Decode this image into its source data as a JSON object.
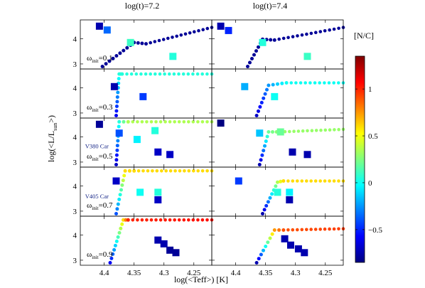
{
  "chart_data": {
    "type": "scatter",
    "col_titles": [
      "log(t)=7.2",
      "log(t)=7.4"
    ],
    "xlabel": "log(<Teff>) [K]",
    "ylabel_main": "log(<L/L",
    "ylabel_sub": "sun",
    "ylabel_tail": ">)",
    "xlim": [
      4.44,
      4.22
    ],
    "ylim": [
      2.8,
      4.75
    ],
    "xticks": [
      4.4,
      4.35,
      4.3,
      4.25
    ],
    "xtick_labels": [
      "4.4",
      "4.35",
      "4.3",
      "4.25"
    ],
    "yticks": [
      3,
      4
    ],
    "ytick_labels": [
      "3",
      "4"
    ],
    "omega_label_main": "ω",
    "omega_label_sub": "init",
    "omega_rows": [
      "=0.1",
      "=0.3",
      "=0.5",
      "=0.7",
      "=0.9"
    ],
    "star_labels": [
      {
        "row": 2,
        "col": 0,
        "text": "V380 Car",
        "x": 4.432,
        "y": 3.55
      },
      {
        "row": 3,
        "col": 0,
        "text": "V405 Car",
        "x": 4.432,
        "y": 3.5
      }
    ],
    "colorbar": {
      "title": "[N/C]",
      "range": [
        -0.85,
        1.35
      ],
      "ticks": [
        1,
        0.5,
        0,
        -0.5
      ],
      "tick_labels": [
        "1",
        "0.5",
        "0",
        "−0.5"
      ]
    },
    "panels": [
      {
        "row": 0,
        "col": 0,
        "track": [
          [
            4.403,
            2.9
          ],
          [
            4.35,
            3.85
          ],
          [
            4.33,
            3.8
          ],
          [
            4.22,
            4.45
          ]
        ],
        "track_v": [
          -0.8,
          -0.8,
          -0.8,
          -0.8
        ],
        "squares": [
          [
            4.408,
            4.5,
            -0.75
          ],
          [
            4.395,
            4.35,
            -0.35
          ],
          [
            4.356,
            3.85,
            0.1
          ],
          [
            4.285,
            3.3,
            0.05
          ]
        ]
      },
      {
        "row": 0,
        "col": 1,
        "track": [
          [
            4.38,
            2.9
          ],
          [
            4.355,
            3.98
          ],
          [
            4.335,
            3.95
          ],
          [
            4.22,
            4.45
          ]
        ],
        "track_v": [
          -0.8,
          -0.8,
          -0.8,
          -0.8
        ],
        "squares": [
          [
            4.425,
            4.5,
            -0.75
          ],
          [
            4.412,
            4.33,
            -0.5
          ],
          [
            4.355,
            3.85,
            0.05
          ],
          [
            4.28,
            3.3,
            0.1
          ]
        ]
      },
      {
        "row": 1,
        "col": 0,
        "track": [
          [
            4.38,
            2.9
          ],
          [
            4.375,
            4.55
          ],
          [
            4.37,
            4.55
          ],
          [
            4.22,
            4.55
          ]
        ],
        "track_v": [
          -0.6,
          0.05,
          0.05,
          0.05
        ],
        "squares": [
          [
            4.383,
            4.05,
            -0.75
          ],
          [
            4.335,
            3.65,
            -0.45
          ]
        ]
      },
      {
        "row": 1,
        "col": 1,
        "track": [
          [
            4.365,
            2.9
          ],
          [
            4.345,
            4.1
          ],
          [
            4.315,
            4.2
          ],
          [
            4.22,
            4.2
          ]
        ],
        "track_v": [
          -0.7,
          -0.25,
          0.0,
          0.0
        ],
        "squares": [
          [
            4.385,
            4.05,
            -0.2
          ],
          [
            4.335,
            3.65,
            0.0
          ]
        ]
      },
      {
        "row": 2,
        "col": 0,
        "track": [
          [
            4.38,
            2.9
          ],
          [
            4.375,
            4.6
          ],
          [
            4.36,
            4.6
          ],
          [
            4.22,
            4.6
          ]
        ],
        "track_v": [
          -0.7,
          0.05,
          0.35,
          0.35
        ],
        "squares": [
          [
            4.408,
            4.5,
            -0.8
          ],
          [
            4.375,
            4.15,
            -0.4
          ],
          [
            4.345,
            3.9,
            -0.05
          ],
          [
            4.31,
            3.4,
            -0.7
          ],
          [
            4.29,
            3.3,
            -0.7
          ],
          [
            4.315,
            4.25,
            0.05
          ]
        ]
      },
      {
        "row": 2,
        "col": 1,
        "track": [
          [
            4.36,
            2.9
          ],
          [
            4.345,
            4.2
          ],
          [
            4.325,
            4.2
          ],
          [
            4.22,
            4.3
          ]
        ],
        "track_v": [
          -0.75,
          0.2,
          0.3,
          0.3
        ],
        "squares": [
          [
            4.425,
            4.55,
            -0.85
          ],
          [
            4.36,
            4.15,
            -0.15
          ],
          [
            4.325,
            4.2,
            0.2
          ],
          [
            4.305,
            3.4,
            -0.75
          ],
          [
            4.28,
            3.3,
            -0.75
          ]
        ]
      },
      {
        "row": 3,
        "col": 0,
        "track": [
          [
            4.38,
            2.9
          ],
          [
            4.365,
            4.6
          ],
          [
            4.35,
            4.6
          ],
          [
            4.22,
            4.6
          ]
        ],
        "track_v": [
          -0.4,
          0.6,
          0.6,
          0.6
        ],
        "squares": [
          [
            4.38,
            4.2,
            -0.7
          ],
          [
            4.34,
            3.75,
            0.0
          ],
          [
            4.31,
            3.75,
            0.05
          ],
          [
            4.31,
            3.45,
            -0.7
          ]
        ]
      },
      {
        "row": 3,
        "col": 1,
        "track": [
          [
            4.355,
            2.9
          ],
          [
            4.33,
            4.15
          ],
          [
            4.32,
            4.2
          ],
          [
            4.22,
            4.2
          ]
        ],
        "track_v": [
          -0.75,
          0.35,
          0.6,
          0.6
        ],
        "squares": [
          [
            4.395,
            4.2,
            -0.45
          ],
          [
            4.33,
            3.75,
            0.05
          ],
          [
            4.31,
            3.75,
            -0.05
          ],
          [
            4.31,
            3.45,
            -0.75
          ]
        ]
      },
      {
        "row": 4,
        "col": 0,
        "track": [
          [
            4.39,
            2.9
          ],
          [
            4.368,
            4.6
          ],
          [
            4.36,
            4.6
          ],
          [
            4.22,
            4.6
          ]
        ],
        "track_v": [
          -0.6,
          0.6,
          1.0,
          1.05
        ],
        "squares": [
          [
            4.31,
            3.8,
            -0.75
          ],
          [
            4.3,
            3.65,
            -0.75
          ],
          [
            4.29,
            3.4,
            -0.8
          ],
          [
            4.28,
            3.3,
            -0.8
          ]
        ]
      },
      {
        "row": 4,
        "col": 1,
        "track": [
          [
            4.365,
            2.9
          ],
          [
            4.335,
            4.2
          ],
          [
            4.32,
            4.2
          ],
          [
            4.22,
            4.25
          ]
        ],
        "track_v": [
          -0.75,
          0.75,
          0.9,
          0.95
        ],
        "squares": [
          [
            4.318,
            3.85,
            -0.75
          ],
          [
            4.308,
            3.6,
            -0.75
          ],
          [
            4.295,
            3.45,
            -0.75
          ],
          [
            4.285,
            3.3,
            -0.75
          ]
        ]
      }
    ]
  }
}
